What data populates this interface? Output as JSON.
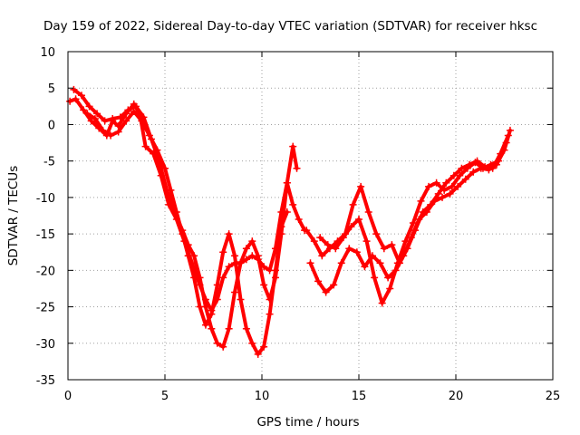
{
  "chart_data": {
    "type": "scatter",
    "title": "Day 159 of 2022, Sidereal Day-to-day VTEC variation (SDTVAR) for receiver hksc",
    "xlabel": "GPS time / hours",
    "ylabel": "SDTVAR / TECUs",
    "xlim": [
      0,
      25
    ],
    "ylim": [
      -35,
      10
    ],
    "xticks": [
      0,
      5,
      10,
      15,
      20,
      25
    ],
    "yticks": [
      10,
      5,
      0,
      -5,
      -10,
      -15,
      -20,
      -25,
      -30,
      -35
    ],
    "xtick_labels": [
      "0",
      "5",
      "10",
      "15",
      "20",
      "25"
    ],
    "ytick_labels": [
      "10",
      "5",
      "0",
      "-5",
      "-10",
      "-15",
      "-20",
      "-25",
      "-30",
      "-35"
    ],
    "grid": true,
    "marker": "+",
    "color": "#ff0000",
    "series": [
      {
        "x": [
          0.1,
          0.4,
          0.8,
          1.2,
          1.6,
          2.0,
          2.3,
          2.6,
          3.0,
          3.4,
          3.7,
          4.0,
          4.4,
          4.8,
          5.2,
          5.6,
          6.0,
          6.4,
          6.8,
          7.1,
          7.4,
          7.7,
          8.0,
          8.3,
          8.6,
          8.9,
          9.2,
          9.5,
          9.8,
          10.1,
          10.4,
          10.7,
          11.0,
          11.3,
          11.6,
          11.9,
          12.2
        ],
        "y": [
          3.2,
          3.5,
          2.0,
          0.5,
          -0.5,
          -1.5,
          0.5,
          -0.2,
          1.5,
          2.8,
          1.5,
          -3.0,
          -4.0,
          -7.0,
          -11.0,
          -13.0,
          -16.0,
          -19.0,
          -22.0,
          -24.0,
          -25.5,
          -24.0,
          -21.0,
          -19.5,
          -19.0,
          -19.0,
          -18.5,
          -18.0,
          -18.5,
          -19.5,
          -20.0,
          -17.0,
          -12.0,
          -8.0,
          -11.0,
          -13.0,
          -14.5
        ]
      },
      {
        "x": [
          0.3,
          0.7,
          1.1,
          1.5,
          1.9,
          2.3,
          2.7,
          3.1,
          3.5,
          3.9,
          4.3,
          4.7,
          5.1,
          5.5,
          5.9,
          6.2,
          6.5,
          6.8,
          7.1,
          7.4,
          7.7,
          8.0,
          8.3,
          8.6,
          8.9,
          9.2,
          9.5,
          9.8,
          10.1,
          10.4,
          10.7,
          11.0,
          11.3,
          11.6,
          11.8
        ],
        "y": [
          4.8,
          4.0,
          2.5,
          1.5,
          0.5,
          0.8,
          1.0,
          2.0,
          2.5,
          1.0,
          -2.0,
          -5.0,
          -9.0,
          -12.0,
          -14.5,
          -16.5,
          -18.0,
          -21.0,
          -25.0,
          -28.0,
          -30.0,
          -30.5,
          -28.0,
          -23.0,
          -19.0,
          -17.0,
          -16.0,
          -18.0,
          -22.0,
          -24.0,
          -21.0,
          -15.0,
          -8.0,
          -3.0,
          -6.0
        ]
      },
      {
        "x": [
          1.0,
          1.4,
          1.8,
          2.2,
          2.6,
          3.0,
          3.4,
          3.8,
          4.2,
          4.6,
          5.0,
          5.3,
          5.6,
          5.9,
          6.2,
          6.5,
          6.8,
          7.1,
          7.4,
          7.7,
          8.0,
          8.3,
          8.6,
          8.9,
          9.2,
          9.5,
          9.8,
          10.1,
          10.4,
          10.7,
          11.0,
          11.3
        ],
        "y": [
          1.5,
          0.8,
          -0.8,
          -1.5,
          -1.0,
          0.5,
          1.8,
          0.5,
          -1.5,
          -3.5,
          -6.0,
          -9.0,
          -12.0,
          -15.0,
          -18.0,
          -21.0,
          -25.0,
          -27.5,
          -26.0,
          -22.0,
          -17.5,
          -15.0,
          -18.0,
          -24.0,
          -28.0,
          -30.0,
          -31.5,
          -30.5,
          -26.0,
          -20.0,
          -14.0,
          -12.0
        ]
      },
      {
        "x": [
          12.3,
          12.7,
          13.1,
          13.5,
          13.9,
          14.3,
          14.7,
          15.1,
          15.5,
          15.9,
          16.3,
          16.7,
          17.1,
          17.5,
          17.9,
          18.3,
          18.7,
          19.1,
          19.5,
          19.9,
          20.3,
          20.7,
          21.1,
          21.5,
          21.9,
          22.3,
          22.7
        ],
        "y": [
          -14.5,
          -16.0,
          -18.0,
          -17.0,
          -16.0,
          -15.0,
          -11.0,
          -8.5,
          -12.0,
          -15.0,
          -17.0,
          -16.5,
          -19.0,
          -17.0,
          -14.5,
          -12.0,
          -11.0,
          -9.5,
          -8.0,
          -7.0,
          -6.0,
          -5.5,
          -5.0,
          -5.8,
          -6.0,
          -4.0,
          -1.5
        ]
      },
      {
        "x": [
          12.5,
          12.9,
          13.3,
          13.7,
          14.1,
          14.5,
          14.9,
          15.3,
          15.7,
          16.1,
          16.5,
          16.9,
          17.3,
          17.7,
          18.1,
          18.5,
          18.9,
          19.3,
          19.7,
          20.1,
          20.5,
          20.9,
          21.3,
          21.7,
          22.1,
          22.5,
          22.8
        ],
        "y": [
          -19.0,
          -21.5,
          -23.0,
          -22.0,
          -19.0,
          -17.0,
          -17.5,
          -19.5,
          -18.0,
          -19.0,
          -21.0,
          -20.0,
          -18.0,
          -15.5,
          -13.0,
          -12.0,
          -10.5,
          -10.0,
          -9.5,
          -8.5,
          -7.5,
          -6.5,
          -6.0,
          -6.2,
          -5.5,
          -3.5,
          -0.8
        ]
      },
      {
        "x": [
          13.0,
          13.4,
          13.8,
          14.2,
          14.6,
          15.0,
          15.4,
          15.8,
          16.2,
          16.6,
          17.0,
          17.4,
          17.8,
          18.2,
          18.6,
          19.0,
          19.4,
          19.8,
          20.2,
          20.6,
          21.0,
          21.4,
          21.8,
          22.2,
          22.6
        ],
        "y": [
          -15.5,
          -16.5,
          -17.0,
          -15.5,
          -14.0,
          -13.0,
          -16.0,
          -21.0,
          -24.5,
          -22.5,
          -19.0,
          -16.0,
          -13.5,
          -10.5,
          -8.5,
          -8.0,
          -9.0,
          -8.5,
          -7.0,
          -6.0,
          -5.2,
          -6.0,
          -5.5,
          -5.0,
          -2.5
        ]
      }
    ]
  }
}
